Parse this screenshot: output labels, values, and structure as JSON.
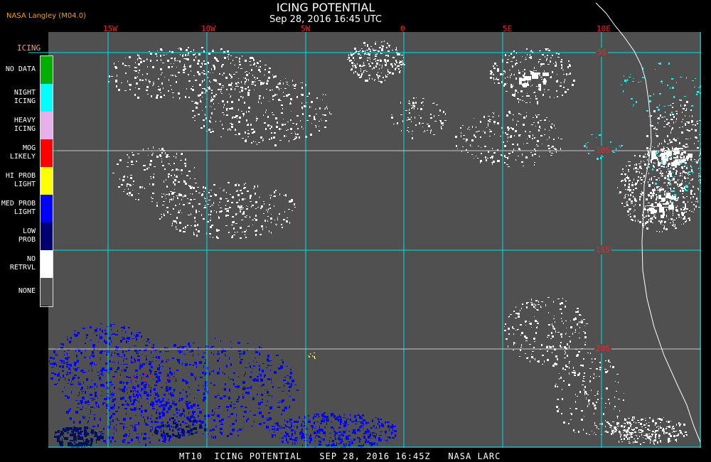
{
  "header": {
    "title": "ICING POTENTIAL",
    "subtitle": "Sep 28, 2016 16:45 UTC",
    "source": "NASA Langley (M04.0)"
  },
  "map": {
    "background_color": "#505050",
    "grid_color": "#00e0e0",
    "longitude_labels": [
      "15W",
      "10W",
      "5W",
      "0",
      "5E",
      "10E"
    ],
    "latitude_labels": [
      "5S",
      "10S",
      "15S",
      "20S"
    ]
  },
  "legend": {
    "title": "ICING",
    "items": [
      {
        "label1": "NO DATA",
        "label2": "",
        "color": "#00b000"
      },
      {
        "label1": "NIGHT",
        "label2": "ICING",
        "color": "#00ffff"
      },
      {
        "label1": "HEAVY",
        "label2": "ICING",
        "color": "#e8b0e8"
      },
      {
        "label1": "MOG",
        "label2": "LIKELY",
        "color": "#ff0000"
      },
      {
        "label1": "HI PROB",
        "label2": "LIGHT",
        "color": "#ffff00"
      },
      {
        "label1": "MED PROB",
        "label2": "LIGHT",
        "color": "#0000ff"
      },
      {
        "label1": "LOW",
        "label2": "PROB",
        "color": "#000070"
      },
      {
        "label1": "NO",
        "label2": "RETRVL",
        "color": "#ffffff"
      },
      {
        "label1": "NONE",
        "label2": "",
        "color": "#505050"
      }
    ]
  },
  "footer": {
    "text": "MT10  ICING POTENTIAL   SEP 28, 2016 16:45Z   NASA LARC"
  }
}
